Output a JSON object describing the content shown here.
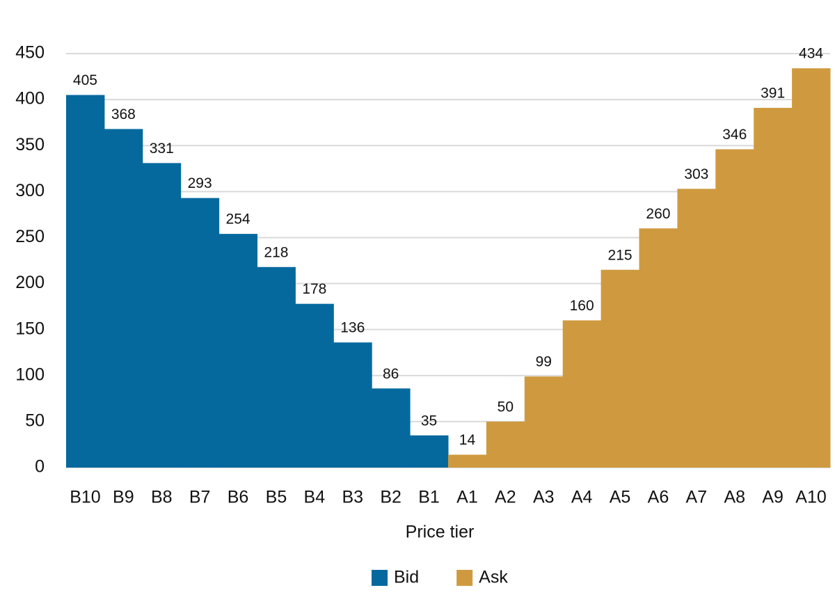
{
  "chart_data": {
    "type": "bar",
    "x_label": "Price tier",
    "categories": [
      "B10",
      "B9",
      "B8",
      "B7",
      "B6",
      "B5",
      "B4",
      "B3",
      "B2",
      "B1",
      "A1",
      "A2",
      "A3",
      "A4",
      "A5",
      "A6",
      "A7",
      "A8",
      "A9",
      "A10"
    ],
    "series": [
      {
        "name": "Bid",
        "color": "#05699e",
        "values": [
          405,
          368,
          331,
          293,
          254,
          218,
          178,
          136,
          86,
          35,
          null,
          null,
          null,
          null,
          null,
          null,
          null,
          null,
          null,
          null
        ]
      },
      {
        "name": "Ask",
        "color": "#cf9a3f",
        "values": [
          null,
          null,
          null,
          null,
          null,
          null,
          null,
          null,
          null,
          null,
          14,
          50,
          99,
          160,
          215,
          260,
          303,
          346,
          391,
          434
        ]
      }
    ],
    "ylim": [
      0,
      450
    ],
    "yticks": [
      0,
      50,
      100,
      150,
      200,
      250,
      300,
      350,
      400,
      450
    ],
    "grid": true,
    "legend": "bottom"
  }
}
